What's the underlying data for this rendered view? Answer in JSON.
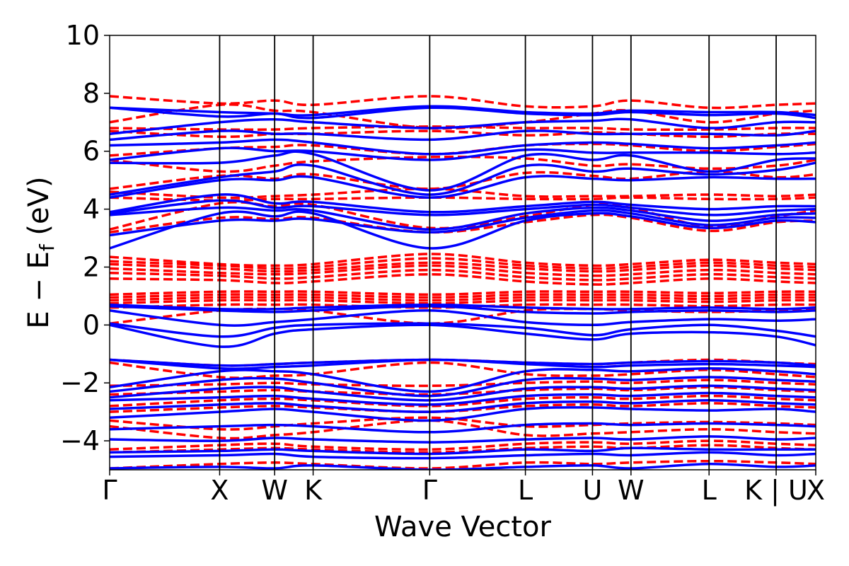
{
  "chart_data": {
    "type": "line",
    "title": "",
    "xlabel": "Wave Vector",
    "ylabel": "E − E_f (eV)",
    "ylabel_parts": {
      "main": "E − E",
      "sub": "f",
      "unit": " (eV)"
    },
    "ylim": [
      -5,
      10
    ],
    "yticks": [
      -4,
      -2,
      0,
      2,
      4,
      6,
      8,
      10
    ],
    "ytick_labels": [
      "−4",
      "−2",
      "0",
      "2",
      "4",
      "6",
      "8",
      "10"
    ],
    "xlim": [
      0,
      6.42
    ],
    "kpoints": [
      {
        "label": "Γ",
        "x": 0.0
      },
      {
        "label": "X",
        "x": 1.0
      },
      {
        "label": "W",
        "x": 1.5
      },
      {
        "label": "K",
        "x": 1.85
      },
      {
        "label": "Γ",
        "x": 2.91
      },
      {
        "label": "L",
        "x": 3.78
      },
      {
        "label": "U",
        "x": 4.39
      },
      {
        "label": "W",
        "x": 4.74
      },
      {
        "label": "L",
        "x": 5.45
      },
      {
        "label": "K | U",
        "x": 6.06
      },
      {
        "label": "X",
        "x": 6.42
      }
    ],
    "grid": false,
    "legend": "none",
    "series": [
      {
        "style": "solid",
        "color": "#0000ff",
        "bands": [
          [
            -4.95,
            -4.9,
            -4.95,
            -4.85,
            -5.0,
            -4.9,
            -4.85,
            -4.95,
            -4.8,
            -4.9,
            -4.85
          ],
          [
            -4.55,
            -4.5,
            -4.45,
            -4.55,
            -4.6,
            -4.5,
            -4.45,
            -4.5,
            -4.4,
            -4.5,
            -4.45
          ],
          [
            -4.4,
            -4.35,
            -4.3,
            -4.35,
            -4.45,
            -4.3,
            -4.35,
            -4.25,
            -4.3,
            -4.3,
            -4.3
          ],
          [
            -3.95,
            -4.0,
            -3.9,
            -3.95,
            -4.05,
            -3.95,
            -3.9,
            -3.95,
            -3.85,
            -3.95,
            -3.9
          ],
          [
            -3.6,
            -3.5,
            -3.45,
            -3.5,
            -3.7,
            -3.45,
            -3.4,
            -3.45,
            -3.4,
            -3.45,
            -3.5
          ],
          [
            -3.2,
            -3.0,
            -2.9,
            -3.0,
            -3.3,
            -2.9,
            -2.85,
            -2.9,
            -2.95,
            -2.9,
            -3.0
          ],
          [
            -2.9,
            -2.75,
            -2.7,
            -2.8,
            -3.0,
            -2.7,
            -2.65,
            -2.7,
            -2.6,
            -2.7,
            -2.75
          ],
          [
            -2.6,
            -2.5,
            -2.45,
            -2.55,
            -2.75,
            -2.45,
            -2.4,
            -2.45,
            -2.35,
            -2.45,
            -2.5
          ],
          [
            -2.5,
            -2.2,
            -2.15,
            -2.3,
            -2.6,
            -2.2,
            -2.15,
            -2.2,
            -2.1,
            -2.2,
            -2.25
          ],
          [
            -2.3,
            -1.9,
            -1.85,
            -2.0,
            -2.45,
            -1.9,
            -1.85,
            -1.9,
            -1.8,
            -1.9,
            -1.95
          ],
          [
            -2.15,
            -1.6,
            -1.6,
            -1.7,
            -2.3,
            -1.6,
            -1.55,
            -1.6,
            -1.5,
            -1.6,
            -1.7
          ],
          [
            -1.2,
            -1.5,
            -1.45,
            -1.4,
            -1.2,
            -1.35,
            -1.45,
            -1.4,
            -1.35,
            -1.4,
            -1.45
          ],
          [
            -1.2,
            -1.4,
            -1.35,
            -1.3,
            -1.2,
            -1.3,
            -1.35,
            -1.3,
            -1.25,
            -1.3,
            -1.4
          ],
          [
            0.0,
            -0.75,
            -0.3,
            -0.15,
            0.0,
            -0.3,
            -0.5,
            -0.3,
            -0.25,
            -0.4,
            -0.7
          ],
          [
            0.05,
            -0.4,
            -0.1,
            0.0,
            0.05,
            -0.1,
            -0.35,
            -0.15,
            0.0,
            -0.2,
            -0.4
          ],
          [
            0.5,
            0.0,
            0.1,
            0.2,
            0.5,
            0.1,
            0.0,
            0.1,
            0.2,
            0.15,
            0.2
          ],
          [
            0.65,
            0.5,
            0.45,
            0.5,
            0.65,
            0.45,
            0.4,
            0.45,
            0.5,
            0.45,
            0.5
          ],
          [
            0.7,
            0.55,
            0.55,
            0.6,
            0.7,
            0.6,
            0.55,
            0.55,
            0.6,
            0.55,
            0.6
          ],
          [
            2.65,
            3.85,
            3.75,
            3.85,
            2.65,
            3.6,
            3.85,
            3.75,
            3.35,
            3.6,
            3.55
          ],
          [
            3.1,
            3.6,
            3.6,
            3.65,
            3.2,
            3.7,
            3.95,
            3.85,
            3.45,
            3.7,
            3.7
          ],
          [
            3.8,
            4.05,
            3.95,
            3.95,
            3.3,
            3.85,
            4.05,
            3.95,
            3.6,
            3.8,
            3.85
          ],
          [
            3.85,
            4.3,
            4.05,
            4.1,
            3.8,
            4.0,
            4.15,
            4.05,
            3.8,
            3.95,
            4.0
          ],
          [
            3.9,
            4.5,
            4.2,
            4.25,
            3.9,
            4.1,
            4.25,
            4.15,
            4.0,
            4.1,
            4.1
          ],
          [
            4.4,
            5.0,
            5.0,
            5.1,
            4.4,
            5.1,
            5.05,
            5.0,
            5.1,
            5.05,
            5.05
          ],
          [
            4.5,
            5.1,
            5.3,
            5.5,
            4.5,
            5.5,
            5.3,
            5.4,
            5.2,
            5.35,
            5.6
          ],
          [
            5.6,
            5.6,
            5.85,
            5.9,
            4.65,
            5.85,
            5.7,
            5.85,
            5.3,
            5.7,
            5.75
          ],
          [
            5.7,
            6.1,
            6.0,
            6.0,
            5.7,
            6.05,
            5.95,
            5.95,
            5.95,
            5.9,
            5.95
          ],
          [
            6.2,
            6.3,
            6.4,
            6.3,
            5.9,
            6.2,
            6.3,
            6.25,
            6.1,
            6.2,
            6.3
          ],
          [
            6.4,
            6.7,
            6.6,
            6.6,
            6.4,
            6.7,
            6.6,
            6.6,
            6.6,
            6.55,
            6.7
          ],
          [
            6.6,
            7.0,
            7.1,
            7.0,
            6.8,
            7.0,
            7.05,
            7.1,
            6.8,
            7.0,
            7.0
          ],
          [
            7.5,
            7.2,
            7.3,
            7.15,
            7.5,
            7.3,
            7.25,
            7.35,
            7.25,
            7.3,
            7.15
          ],
          [
            7.5,
            7.35,
            7.3,
            7.25,
            7.55,
            7.35,
            7.3,
            7.4,
            7.35,
            7.35,
            7.25
          ]
        ]
      },
      {
        "style": "dashed",
        "color": "#ff0000",
        "bands": [
          [
            -4.95,
            -4.8,
            -4.75,
            -4.8,
            -4.95,
            -4.75,
            -4.8,
            -4.75,
            -4.7,
            -4.75,
            -4.8
          ],
          [
            -4.4,
            -4.3,
            -4.25,
            -4.3,
            -4.4,
            -4.25,
            -4.2,
            -4.25,
            -4.15,
            -4.25,
            -4.3
          ],
          [
            -4.3,
            -4.15,
            -4.1,
            -4.2,
            -4.3,
            -4.1,
            -4.05,
            -4.1,
            -4.0,
            -4.1,
            -4.15
          ],
          [
            -3.5,
            -3.9,
            -3.8,
            -3.7,
            -3.3,
            -3.8,
            -3.75,
            -3.7,
            -3.6,
            -3.7,
            -3.75
          ],
          [
            -3.3,
            -3.6,
            -3.5,
            -3.4,
            -3.2,
            -3.5,
            -3.45,
            -3.4,
            -3.35,
            -3.4,
            -3.45
          ],
          [
            -3.0,
            -2.85,
            -2.8,
            -2.85,
            -3.0,
            -2.8,
            -2.75,
            -2.8,
            -2.7,
            -2.8,
            -2.85
          ],
          [
            -2.8,
            -2.6,
            -2.55,
            -2.6,
            -2.8,
            -2.55,
            -2.5,
            -2.55,
            -2.45,
            -2.55,
            -2.6
          ],
          [
            -2.4,
            -2.3,
            -2.25,
            -2.3,
            -2.4,
            -2.25,
            -2.2,
            -2.25,
            -2.15,
            -2.25,
            -2.3
          ],
          [
            -2.1,
            -2.05,
            -2.0,
            -2.05,
            -2.1,
            -2.0,
            -1.95,
            -2.0,
            -1.9,
            -2.0,
            -2.05
          ],
          [
            -1.3,
            -1.8,
            -1.75,
            -1.7,
            -1.3,
            -1.7,
            -1.75,
            -1.7,
            -1.55,
            -1.7,
            -1.8
          ],
          [
            -1.2,
            -1.4,
            -1.35,
            -1.3,
            -1.2,
            -1.3,
            -1.35,
            -1.3,
            -1.2,
            -1.3,
            -1.35
          ],
          [
            0.05,
            0.5,
            0.55,
            0.5,
            0.05,
            0.5,
            0.55,
            0.5,
            0.45,
            0.5,
            0.55
          ],
          [
            0.6,
            0.7,
            0.7,
            0.7,
            0.6,
            0.7,
            0.7,
            0.7,
            0.65,
            0.7,
            0.7
          ],
          [
            0.75,
            0.85,
            0.85,
            0.85,
            0.75,
            0.85,
            0.85,
            0.85,
            0.8,
            0.85,
            0.85
          ],
          [
            0.85,
            0.95,
            0.95,
            0.95,
            0.85,
            0.95,
            0.95,
            0.95,
            0.9,
            0.95,
            0.95
          ],
          [
            0.95,
            1.05,
            1.05,
            1.05,
            0.95,
            1.05,
            1.05,
            1.05,
            1.0,
            1.05,
            1.05
          ],
          [
            1.05,
            1.15,
            1.15,
            1.15,
            1.05,
            1.15,
            1.15,
            1.15,
            1.1,
            1.15,
            1.15
          ],
          [
            1.6,
            1.55,
            1.45,
            1.5,
            1.75,
            1.5,
            1.4,
            1.45,
            1.6,
            1.5,
            1.45
          ],
          [
            1.8,
            1.7,
            1.6,
            1.65,
            1.9,
            1.65,
            1.55,
            1.6,
            1.75,
            1.65,
            1.6
          ],
          [
            1.95,
            1.8,
            1.75,
            1.8,
            2.05,
            1.8,
            1.7,
            1.75,
            1.9,
            1.8,
            1.75
          ],
          [
            2.1,
            1.95,
            1.85,
            1.9,
            2.15,
            1.95,
            1.85,
            1.9,
            2.05,
            1.95,
            1.9
          ],
          [
            2.2,
            2.05,
            1.95,
            2.0,
            2.3,
            2.05,
            1.95,
            2.0,
            2.15,
            2.05,
            2.0
          ],
          [
            2.35,
            2.1,
            2.05,
            2.1,
            2.45,
            2.15,
            2.05,
            2.1,
            2.25,
            2.15,
            2.1
          ],
          [
            3.2,
            3.7,
            3.65,
            3.7,
            3.2,
            3.55,
            3.8,
            3.7,
            3.25,
            3.55,
            3.6
          ],
          [
            3.3,
            4.2,
            4.1,
            4.15,
            3.35,
            3.75,
            4.15,
            4.05,
            3.4,
            3.75,
            3.95
          ],
          [
            4.4,
            4.3,
            4.35,
            4.35,
            4.4,
            4.35,
            4.35,
            4.4,
            4.35,
            4.35,
            4.4
          ],
          [
            4.6,
            4.4,
            4.45,
            4.5,
            4.7,
            4.45,
            4.45,
            4.45,
            4.5,
            4.45,
            4.5
          ],
          [
            4.7,
            5.15,
            5.05,
            5.2,
            4.7,
            5.25,
            5.15,
            5.05,
            5.3,
            5.1,
            5.2
          ],
          [
            5.7,
            5.3,
            5.5,
            5.65,
            5.8,
            5.75,
            5.5,
            5.55,
            5.4,
            5.5,
            5.7
          ],
          [
            5.85,
            6.1,
            6.15,
            6.2,
            5.9,
            6.2,
            6.25,
            6.2,
            6.0,
            6.15,
            6.25
          ],
          [
            6.7,
            6.5,
            6.6,
            6.6,
            6.7,
            6.55,
            6.65,
            6.6,
            6.5,
            6.6,
            6.6
          ],
          [
            6.8,
            6.75,
            6.75,
            6.8,
            6.85,
            6.8,
            6.8,
            6.75,
            6.75,
            6.8,
            6.8
          ],
          [
            7.0,
            7.6,
            7.4,
            7.35,
            6.8,
            7.0,
            7.3,
            7.4,
            7.0,
            7.3,
            7.4
          ],
          [
            7.9,
            7.65,
            7.75,
            7.6,
            7.9,
            7.55,
            7.55,
            7.75,
            7.5,
            7.6,
            7.65
          ]
        ]
      }
    ]
  }
}
